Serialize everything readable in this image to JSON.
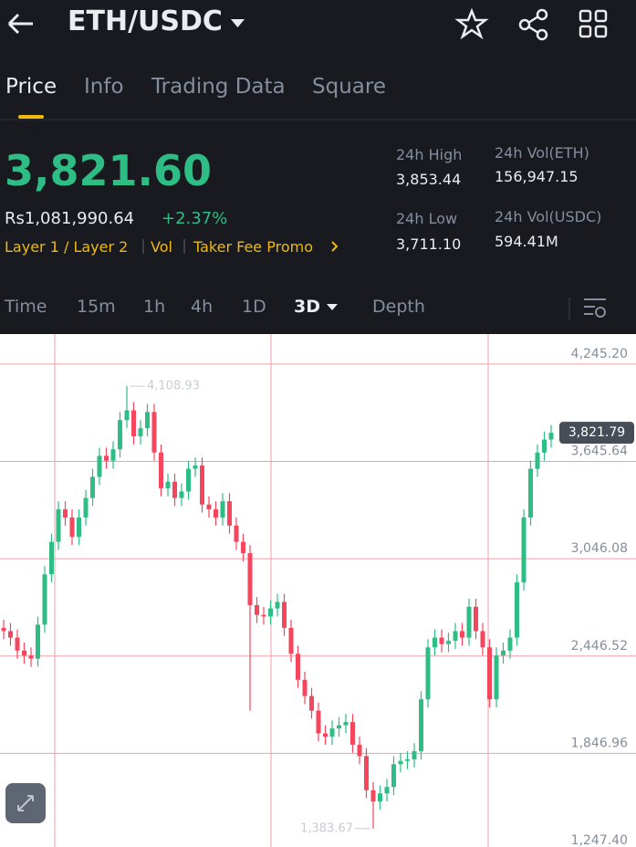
{
  "header": {
    "title": "ETH/USDC"
  },
  "tabs": [
    "Price",
    "Info",
    "Trading Data",
    "Square"
  ],
  "ticker": {
    "price": "3,821.60",
    "fiat": "Rs1,081,990.64",
    "change": "+2.37%",
    "tags": [
      "Layer 1 / Layer 2",
      "Vol",
      "Taker Fee Promo"
    ],
    "stats": [
      {
        "label": "24h High",
        "value": "3,853.44"
      },
      {
        "label": "24h Vol(ETH)",
        "value": "156,947.15"
      },
      {
        "label": "24h Low",
        "value": "3,711.10"
      },
      {
        "label": "24h Vol(USDC)",
        "value": "594.41M"
      }
    ]
  },
  "intervals": [
    "Time",
    "15m",
    "1h",
    "4h",
    "1D",
    "3D",
    "Depth"
  ],
  "chart_data": {
    "type": "candlestick",
    "up_color": "#2ebd85",
    "down_color": "#f6465d",
    "open": [
      2620,
      2600,
      2560,
      2480,
      2450,
      2430,
      2640,
      2950,
      3150,
      3350,
      3300,
      3180,
      3300,
      3420,
      3550,
      3680,
      3650,
      3720,
      3900,
      3960,
      3800,
      3850,
      3950,
      3700,
      3480,
      3520,
      3420,
      3460,
      3600,
      3620,
      3380,
      3350,
      3300,
      3400,
      3250,
      3150,
      3080,
      2760,
      2700,
      2690,
      2740,
      2780,
      2620,
      2460,
      2300,
      2200,
      2110,
      1970,
      1950,
      2000,
      2020,
      2040,
      1900,
      1830,
      1620,
      1550,
      1600,
      1640,
      1780,
      1800,
      1810,
      1860,
      2180,
      2500,
      2560,
      2520,
      2540,
      2600,
      2560,
      2750,
      2600,
      2500,
      2180,
      2450,
      2480,
      2560,
      2900,
      3300,
      3600,
      3700,
      3780
    ],
    "high": [
      2670,
      2650,
      2610,
      2530,
      2500,
      2690,
      3000,
      3200,
      3400,
      3400,
      3350,
      3350,
      3470,
      3600,
      3730,
      3730,
      3770,
      3950,
      4108.93,
      4010,
      3900,
      4000,
      4000,
      3750,
      3570,
      3570,
      3510,
      3650,
      3670,
      3670,
      3430,
      3400,
      3450,
      3450,
      3300,
      3200,
      3130,
      2810,
      2750,
      2790,
      2830,
      2830,
      2670,
      2510,
      2350,
      2250,
      2160,
      2020,
      2050,
      2070,
      2090,
      2090,
      1950,
      1880,
      1670,
      1650,
      1690,
      1830,
      1850,
      1860,
      1910,
      2230,
      2550,
      2610,
      2610,
      2590,
      2650,
      2650,
      2800,
      2800,
      2650,
      2550,
      2500,
      2530,
      2610,
      2950,
      3350,
      3650,
      3750,
      3830,
      3870
    ],
    "low": [
      2550,
      2510,
      2430,
      2400,
      2380,
      2380,
      2590,
      2900,
      3100,
      3250,
      3130,
      3130,
      3250,
      3370,
      3500,
      3600,
      3600,
      3670,
      3850,
      3750,
      3750,
      3800,
      3650,
      3430,
      3430,
      3370,
      3370,
      3410,
      3550,
      3330,
      3300,
      3250,
      3250,
      3200,
      3100,
      3030,
      2110,
      2650,
      2640,
      2640,
      2690,
      2570,
      2410,
      2250,
      2150,
      2060,
      1920,
      1900,
      1900,
      1950,
      1970,
      1850,
      1780,
      1570,
      1383.67,
      1500,
      1550,
      1590,
      1730,
      1750,
      1760,
      1810,
      2130,
      2450,
      2470,
      2470,
      2490,
      2510,
      2510,
      2550,
      2450,
      2130,
      2130,
      2400,
      2430,
      2510,
      2850,
      3250,
      3550,
      3650,
      3730
    ],
    "close": [
      2600,
      2560,
      2480,
      2450,
      2430,
      2640,
      2950,
      3150,
      3350,
      3300,
      3180,
      3300,
      3420,
      3550,
      3680,
      3650,
      3720,
      3900,
      3960,
      3800,
      3850,
      3950,
      3700,
      3480,
      3520,
      3420,
      3460,
      3600,
      3620,
      3380,
      3350,
      3300,
      3400,
      3250,
      3150,
      3080,
      2760,
      2700,
      2690,
      2740,
      2780,
      2620,
      2460,
      2300,
      2200,
      2110,
      1970,
      1950,
      2000,
      2020,
      2040,
      1900,
      1830,
      1620,
      1550,
      1600,
      1640,
      1780,
      1800,
      1810,
      1860,
      2180,
      2500,
      2560,
      2520,
      2540,
      2600,
      2560,
      2750,
      2600,
      2500,
      2180,
      2450,
      2480,
      2560,
      2900,
      3300,
      3600,
      3700,
      3780,
      3821.79
    ],
    "ylim": [
      1270,
      4430
    ],
    "yticks": [
      {
        "value": 4245.2,
        "label": "4,245.20"
      },
      {
        "value": 3645.64,
        "label": "3,645.64"
      },
      {
        "value": 3046.08,
        "label": "3,046.08"
      },
      {
        "value": 2446.52,
        "label": "2,446.52"
      },
      {
        "value": 1846.96,
        "label": "1,846.96"
      },
      {
        "value": 1247.4,
        "label": "1,247.40"
      }
    ],
    "max_label": {
      "value": 4108.93,
      "label": "4,108.93"
    },
    "min_label": {
      "value": 1383.67,
      "label": "1,383.67"
    },
    "last_price": {
      "value": 3821.79,
      "label": "3,821.79"
    }
  }
}
